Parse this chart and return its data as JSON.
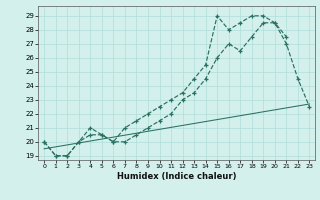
{
  "xlabel": "Humidex (Indice chaleur)",
  "xlim": [
    -0.5,
    23.5
  ],
  "ylim": [
    18.7,
    29.7
  ],
  "xticks": [
    0,
    1,
    2,
    3,
    4,
    5,
    6,
    7,
    8,
    9,
    10,
    11,
    12,
    13,
    14,
    15,
    16,
    17,
    18,
    19,
    20,
    21,
    22,
    23
  ],
  "yticks": [
    19,
    20,
    21,
    22,
    23,
    24,
    25,
    26,
    27,
    28,
    29
  ],
  "bg_color": "#d3f0ec",
  "grid_color": "#b0ddd8",
  "line_color": "#2a7060",
  "line1_x": [
    0,
    1,
    2,
    3,
    4,
    5,
    6,
    7,
    8,
    9,
    10,
    11,
    12,
    13,
    14,
    15,
    16,
    17,
    18,
    19,
    20,
    21,
    22,
    23
  ],
  "line1_y": [
    20.0,
    19.0,
    19.0,
    20.0,
    20.5,
    20.5,
    20.0,
    20.0,
    20.5,
    21.0,
    21.5,
    22.0,
    23.0,
    23.5,
    24.5,
    26.0,
    27.0,
    26.5,
    27.5,
    28.5,
    28.5,
    27.0,
    24.5,
    22.5
  ],
  "line2_x": [
    0,
    1,
    2,
    3,
    4,
    5,
    6,
    7,
    8,
    9,
    10,
    11,
    12,
    13,
    14,
    15,
    16,
    17,
    18,
    19,
    20,
    21
  ],
  "line2_y": [
    20.0,
    19.0,
    19.0,
    20.0,
    21.0,
    20.5,
    20.0,
    21.0,
    21.5,
    22.0,
    22.5,
    23.0,
    23.5,
    24.5,
    25.5,
    29.0,
    28.0,
    28.5,
    29.0,
    29.0,
    28.5,
    27.5
  ],
  "line3_x": [
    0,
    23
  ],
  "line3_y": [
    19.5,
    22.7
  ]
}
